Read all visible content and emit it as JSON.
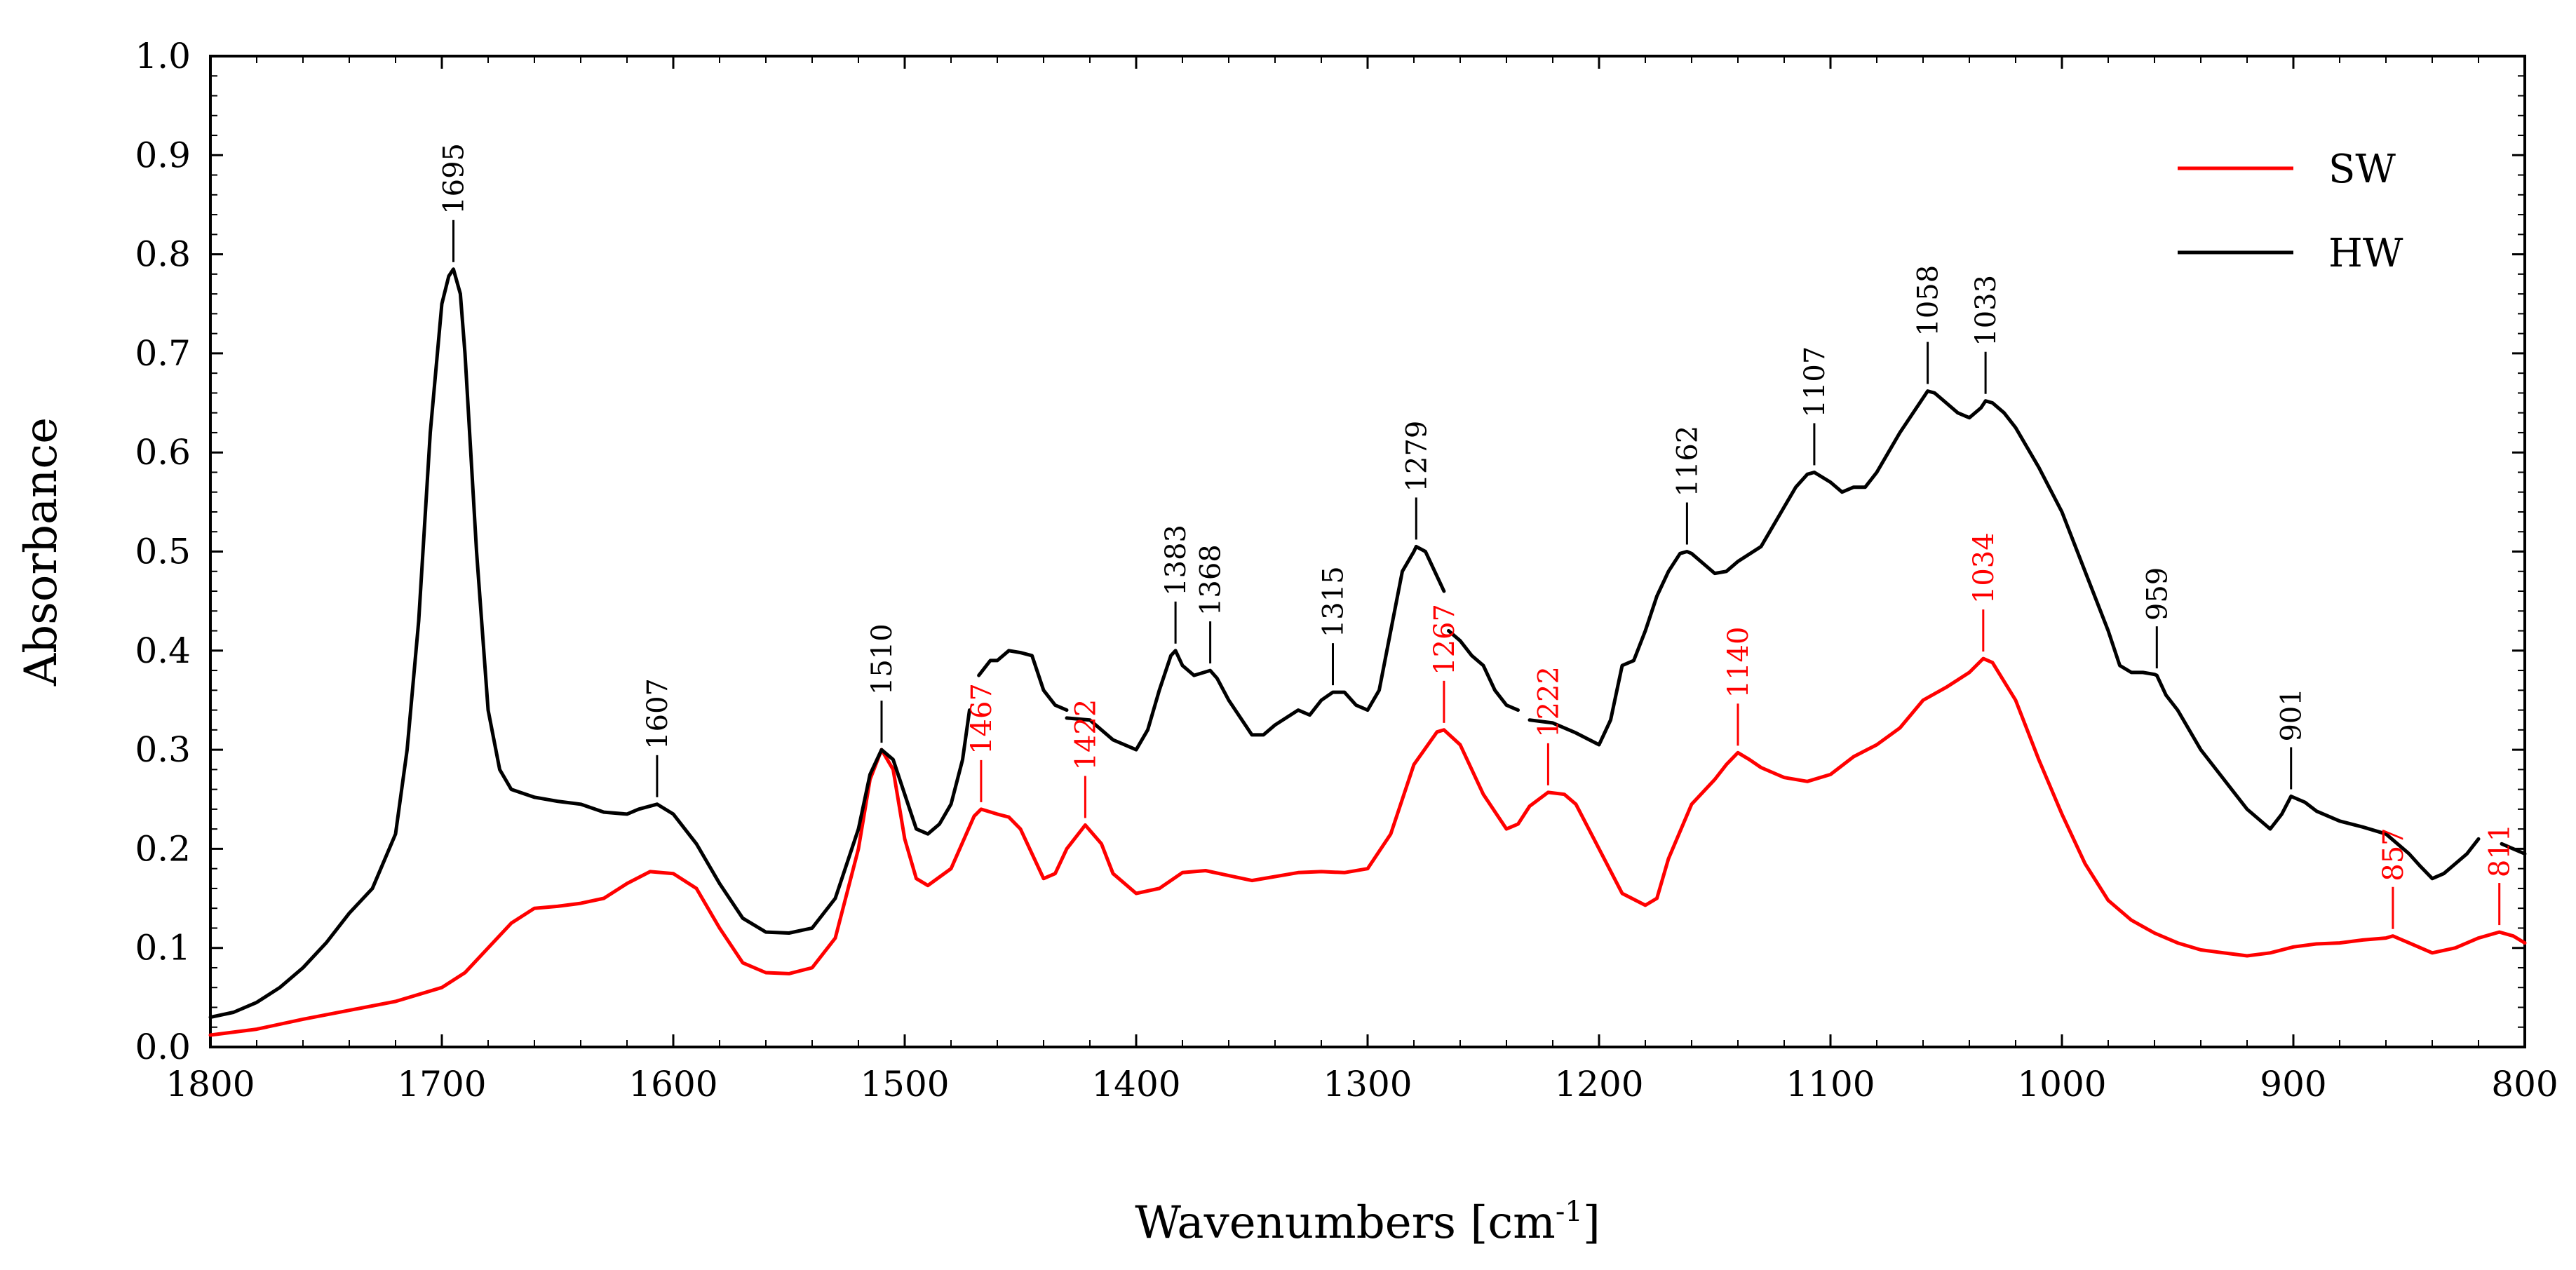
{
  "chart_data": {
    "type": "line",
    "title": "",
    "xlabel": "Wavenumbers [cm",
    "xlabel_sup": "-1",
    "xlabel_end": "]",
    "ylabel": "Absorbance",
    "xlim": [
      1800,
      800
    ],
    "ylim": [
      0.0,
      1.0
    ],
    "x_ticks": [
      1800,
      1700,
      1600,
      1500,
      1400,
      1300,
      1200,
      1100,
      1000,
      900,
      800
    ],
    "x_tick_labels": [
      "1800",
      "1700",
      "1600",
      "1500",
      "1400",
      "1300",
      "1200",
      "1100",
      "1000",
      "900",
      "800"
    ],
    "y_ticks": [
      0.0,
      0.1,
      0.2,
      0.3,
      0.4,
      0.5,
      0.6,
      0.7,
      0.8,
      0.9,
      1.0
    ],
    "y_tick_labels": [
      "0.0",
      "0.1",
      "0.2",
      "0.3",
      "0.4",
      "0.5",
      "0.6",
      "0.7",
      "0.8",
      "0.9",
      "1.0"
    ],
    "grid": false,
    "legend_position": "top-right",
    "series": [
      {
        "name": "SW",
        "color": "#ff0000",
        "x": [
          1800,
          1780,
          1760,
          1740,
          1720,
          1700,
          1690,
          1680,
          1670,
          1660,
          1650,
          1640,
          1630,
          1620,
          1610,
          1600,
          1590,
          1580,
          1570,
          1560,
          1550,
          1540,
          1530,
          1520,
          1515,
          1510,
          1505,
          1500,
          1495,
          1490,
          1480,
          1470,
          1467,
          1460,
          1455,
          1450,
          1440,
          1435,
          1430,
          1422,
          1415,
          1410,
          1400,
          1390,
          1380,
          1370,
          1360,
          1350,
          1340,
          1330,
          1320,
          1310,
          1300,
          1290,
          1280,
          1270,
          1267,
          1260,
          1250,
          1240,
          1235,
          1230,
          1222,
          1215,
          1210,
          1200,
          1190,
          1180,
          1175,
          1170,
          1160,
          1150,
          1145,
          1140,
          1135,
          1130,
          1120,
          1110,
          1100,
          1090,
          1080,
          1070,
          1060,
          1050,
          1040,
          1034,
          1030,
          1020,
          1010,
          1000,
          990,
          980,
          970,
          960,
          950,
          940,
          930,
          920,
          910,
          900,
          890,
          880,
          870,
          860,
          857,
          850,
          840,
          830,
          820,
          811,
          805,
          800
        ],
        "y": [
          0.012,
          0.018,
          0.028,
          0.037,
          0.046,
          0.06,
          0.075,
          0.1,
          0.125,
          0.14,
          0.142,
          0.145,
          0.15,
          0.165,
          0.177,
          0.175,
          0.16,
          0.12,
          0.085,
          0.075,
          0.074,
          0.08,
          0.11,
          0.2,
          0.27,
          0.3,
          0.28,
          0.21,
          0.17,
          0.163,
          0.18,
          0.233,
          0.24,
          0.235,
          0.232,
          0.22,
          0.17,
          0.175,
          0.2,
          0.224,
          0.205,
          0.175,
          0.155,
          0.16,
          0.176,
          0.178,
          0.173,
          0.168,
          0.172,
          0.176,
          0.177,
          0.176,
          0.18,
          0.215,
          0.285,
          0.318,
          0.32,
          0.305,
          0.255,
          0.22,
          0.225,
          0.243,
          0.257,
          0.255,
          0.245,
          0.2,
          0.155,
          0.143,
          0.15,
          0.19,
          0.245,
          0.27,
          0.285,
          0.297,
          0.29,
          0.282,
          0.272,
          0.268,
          0.275,
          0.293,
          0.305,
          0.322,
          0.35,
          0.363,
          0.378,
          0.392,
          0.388,
          0.35,
          0.29,
          0.235,
          0.185,
          0.148,
          0.128,
          0.115,
          0.105,
          0.098,
          0.095,
          0.092,
          0.095,
          0.101,
          0.104,
          0.105,
          0.108,
          0.11,
          0.112,
          0.105,
          0.095,
          0.1,
          0.11,
          0.116,
          0.112,
          0.105
        ],
        "peak_labels": [
          {
            "x": 1467,
            "y": 0.24,
            "label": "1467"
          },
          {
            "x": 1422,
            "y": 0.224,
            "label": "1422"
          },
          {
            "x": 1267,
            "y": 0.32,
            "label": "1267"
          },
          {
            "x": 1222,
            "y": 0.257,
            "label": "1222"
          },
          {
            "x": 1140,
            "y": 0.297,
            "label": "1140"
          },
          {
            "x": 1034,
            "y": 0.392,
            "label": "1034"
          },
          {
            "x": 857,
            "y": 0.112,
            "label": "857"
          },
          {
            "x": 811,
            "y": 0.116,
            "label": "811"
          }
        ]
      },
      {
        "name": "HW",
        "color": "#000000",
        "segments": [
          {
            "x": [
              1800,
              1790,
              1780,
              1770,
              1760,
              1750,
              1740,
              1730,
              1720,
              1715,
              1710,
              1705,
              1700,
              1697,
              1695,
              1692,
              1690,
              1685,
              1680,
              1675,
              1670,
              1660,
              1650,
              1640,
              1630,
              1620,
              1615,
              1607,
              1600,
              1590,
              1580,
              1570,
              1560,
              1550,
              1540,
              1530,
              1520,
              1515,
              1510,
              1505,
              1500,
              1495,
              1490,
              1485,
              1480,
              1475,
              1472
            ],
            "y": [
              0.03,
              0.035,
              0.045,
              0.06,
              0.08,
              0.105,
              0.135,
              0.16,
              0.215,
              0.3,
              0.43,
              0.62,
              0.75,
              0.778,
              0.785,
              0.76,
              0.7,
              0.5,
              0.34,
              0.28,
              0.26,
              0.252,
              0.248,
              0.245,
              0.237,
              0.235,
              0.24,
              0.245,
              0.235,
              0.205,
              0.165,
              0.13,
              0.116,
              0.115,
              0.12,
              0.15,
              0.22,
              0.275,
              0.3,
              0.29,
              0.255,
              0.22,
              0.215,
              0.225,
              0.245,
              0.29,
              0.34
            ]
          },
          {
            "x": [
              1468,
              1463,
              1460,
              1455,
              1450,
              1445,
              1440,
              1435,
              1430
            ],
            "y": [
              0.375,
              0.39,
              0.39,
              0.4,
              0.398,
              0.395,
              0.36,
              0.345,
              0.34
            ]
          },
          {
            "x": [
              1430,
              1420,
              1410,
              1400,
              1395,
              1390,
              1385,
              1383,
              1380,
              1375,
              1368,
              1365,
              1360,
              1350,
              1345,
              1340,
              1330,
              1325,
              1320,
              1315,
              1310,
              1305,
              1300,
              1295,
              1290,
              1285,
              1280,
              1279,
              1275,
              1270,
              1267
            ],
            "y": [
              0.332,
              0.33,
              0.31,
              0.3,
              0.32,
              0.36,
              0.395,
              0.4,
              0.385,
              0.375,
              0.38,
              0.372,
              0.35,
              0.315,
              0.315,
              0.325,
              0.34,
              0.335,
              0.35,
              0.358,
              0.358,
              0.345,
              0.34,
              0.36,
              0.42,
              0.48,
              0.5,
              0.505,
              0.5,
              0.475,
              0.46
            ]
          },
          {
            "x": [
              1265,
              1260,
              1255,
              1250,
              1245,
              1240,
              1235
            ],
            "y": [
              0.42,
              0.41,
              0.395,
              0.385,
              0.36,
              0.345,
              0.34
            ]
          },
          {
            "x": [
              1230,
              1220,
              1210,
              1200,
              1195,
              1190,
              1185,
              1180,
              1175,
              1170,
              1165,
              1162,
              1160,
              1155,
              1150,
              1145,
              1140,
              1130,
              1120,
              1115,
              1110,
              1107,
              1100,
              1095,
              1090,
              1085,
              1080,
              1070,
              1060,
              1058,
              1055,
              1050,
              1045,
              1040,
              1035,
              1033,
              1030,
              1025,
              1020,
              1010,
              1000,
              990,
              980,
              975,
              970,
              965,
              960,
              959,
              955,
              950,
              940,
              930,
              920,
              910,
              905,
              901,
              895,
              890,
              880,
              870,
              860,
              850,
              845,
              840,
              835,
              830,
              825,
              820
            ],
            "y": [
              0.33,
              0.327,
              0.317,
              0.305,
              0.33,
              0.385,
              0.39,
              0.42,
              0.455,
              0.48,
              0.498,
              0.5,
              0.498,
              0.488,
              0.478,
              0.48,
              0.49,
              0.505,
              0.545,
              0.565,
              0.578,
              0.58,
              0.57,
              0.56,
              0.565,
              0.565,
              0.58,
              0.62,
              0.655,
              0.662,
              0.66,
              0.65,
              0.64,
              0.635,
              0.645,
              0.652,
              0.65,
              0.64,
              0.625,
              0.585,
              0.54,
              0.48,
              0.42,
              0.385,
              0.378,
              0.378,
              0.376,
              0.375,
              0.355,
              0.34,
              0.3,
              0.27,
              0.24,
              0.22,
              0.235,
              0.253,
              0.247,
              0.238,
              0.228,
              0.222,
              0.215,
              0.195,
              0.182,
              0.17,
              0.175,
              0.185,
              0.195,
              0.21
            ]
          },
          {
            "x": [
              810,
              805,
              800
            ],
            "y": [
              0.205,
              0.2,
              0.195
            ]
          }
        ],
        "peak_labels": [
          {
            "x": 1695,
            "y": 0.785,
            "label": "1695"
          },
          {
            "x": 1607,
            "y": 0.245,
            "label": "1607"
          },
          {
            "x": 1510,
            "y": 0.3,
            "label": "1510"
          },
          {
            "x": 1383,
            "y": 0.4,
            "label": "1383"
          },
          {
            "x": 1368,
            "y": 0.38,
            "label": "1368"
          },
          {
            "x": 1315,
            "y": 0.358,
            "label": "1315"
          },
          {
            "x": 1279,
            "y": 0.505,
            "label": "1279"
          },
          {
            "x": 1162,
            "y": 0.5,
            "label": "1162"
          },
          {
            "x": 1107,
            "y": 0.58,
            "label": "1107"
          },
          {
            "x": 1058,
            "y": 0.662,
            "label": "1058"
          },
          {
            "x": 1033,
            "y": 0.652,
            "label": "1033"
          },
          {
            "x": 959,
            "y": 0.375,
            "label": "959"
          },
          {
            "x": 901,
            "y": 0.253,
            "label": "901"
          }
        ]
      }
    ]
  }
}
